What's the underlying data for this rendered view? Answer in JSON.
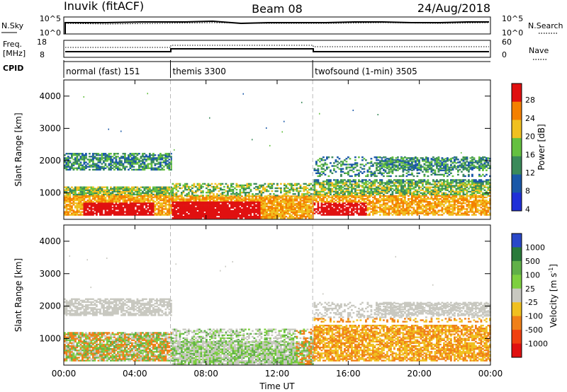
{
  "header": {
    "station": "Inuvik (fitACF)",
    "beam": "Beam 08",
    "date": "24/Aug/2018"
  },
  "noise_panel": {
    "left_label": "N.Sky",
    "right_label": "N.Search",
    "left_ticks": [
      "10^5",
      "10^0"
    ],
    "right_ticks": [
      "10^5",
      "10^0"
    ]
  },
  "freq_panel": {
    "left_label_line1": "Freq.",
    "left_label_line2": "[MHz]",
    "right_label": "Nave",
    "left_ticks": [
      "18",
      "8"
    ],
    "right_ticks": [
      "60",
      "0"
    ]
  },
  "cpid": {
    "label": "CPID",
    "segments": [
      {
        "name": "normal (fast) 151",
        "start_hour": 0
      },
      {
        "name": "themis 3300",
        "start_hour": 6
      },
      {
        "name": "twofsound (1-min) 3505",
        "start_hour": 14
      }
    ]
  },
  "chart_data": [
    {
      "type": "heatmap",
      "title": "",
      "ylabel": "Slant Range [km]",
      "xlim": [
        0,
        24
      ],
      "ylim": [
        180,
        4500
      ],
      "y_ticks": [
        "1000",
        "2000",
        "3000",
        "4000"
      ],
      "colorbar": {
        "label": "Power [dB]",
        "ticks": [
          "4",
          "8",
          "12",
          "16",
          "20",
          "24",
          "28"
        ],
        "colors": [
          "#2030d8",
          "#1a58a8",
          "#3a8a5a",
          "#64c040",
          "#f0c020",
          "#f48000",
          "#e01010"
        ]
      }
    },
    {
      "type": "heatmap",
      "title": "",
      "ylabel": "Slant Range [km]",
      "xlabel": "Time UT",
      "xlim": [
        0,
        24
      ],
      "ylim": [
        180,
        4500
      ],
      "x_ticks": [
        "00:00",
        "04:00",
        "08:00",
        "12:00",
        "16:00",
        "20:00",
        "00:00"
      ],
      "y_ticks": [
        "1000",
        "2000",
        "3000",
        "4000"
      ],
      "colorbar": {
        "label": "Velocity [m s",
        "label_exp": "-1",
        "label_end": "]",
        "ticks": [
          "1000",
          "500",
          "100",
          "25",
          "-25",
          "-100",
          "-500",
          "-1000"
        ],
        "colors": [
          "#2a48c8",
          "#2a7a3a",
          "#60b048",
          "#7ed040",
          "#c8c8c0",
          "#f0c020",
          "#f08018",
          "#f04010",
          "#e01010"
        ]
      }
    }
  ]
}
